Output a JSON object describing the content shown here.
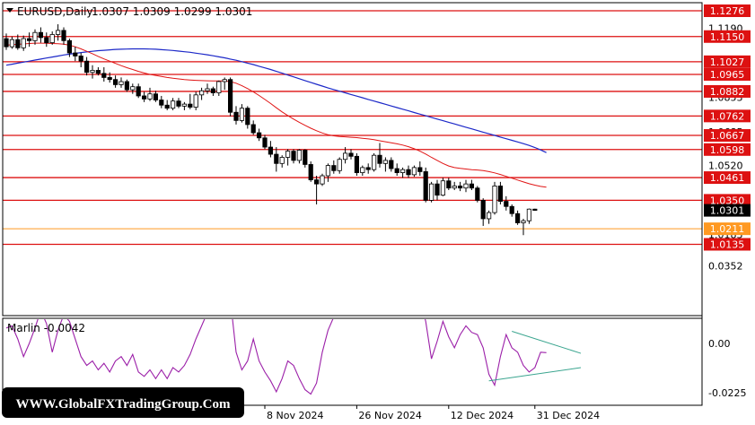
{
  "header": {
    "symbol_label": "EURUSD,Daily",
    "ohlc": "1.0307 1.0309 1.0299 1.0301"
  },
  "indicator": {
    "label": "Marlin -0.0042",
    "axis_labels": [
      "0.0352",
      "0.00",
      "-0.0225"
    ]
  },
  "watermark": "WWW.GlobalFXTradingGroup.Com",
  "colors": {
    "level_line": "#dd1111",
    "level_label_bg": "#dd1111",
    "current_price_bg": "#000000",
    "orange_level": "#ff9922",
    "ma_fast": "#e01515",
    "ma_slow": "#1c28c8",
    "oscillator": "#9b1fa8",
    "triangle": "#3aa58f"
  },
  "chart_data": [
    {
      "type": "candlestick",
      "price_axis_labels": [
        "1.1190",
        "1.0853",
        "1.0685",
        "1.0520",
        "1.0183"
      ],
      "x_tick_labels": [
        "8 Nov 2024",
        "26 Nov 2024",
        "12 Dec 2024",
        "31 Dec 2024"
      ],
      "current_price": 1.0301,
      "horizontal_levels": [
        {
          "price": 1.1276,
          "label": "1.1276"
        },
        {
          "price": 1.115,
          "label": "1.1150"
        },
        {
          "price": 1.1027,
          "label": "1.1027"
        },
        {
          "price": 1.0965,
          "label": "1.0965"
        },
        {
          "price": 1.0882,
          "label": "1.0882"
        },
        {
          "price": 1.0762,
          "label": "1.0762"
        },
        {
          "price": 1.0667,
          "label": "1.0667"
        },
        {
          "price": 1.0598,
          "label": "1.0598"
        },
        {
          "price": 1.0461,
          "label": "1.0461"
        },
        {
          "price": 1.035,
          "label": "1.0350"
        },
        {
          "price": 1.0135,
          "label": "1.0135"
        }
      ],
      "orange_level": {
        "price": 1.0211,
        "label": "1.0211"
      },
      "candles": [
        [
          1.114,
          1.1165,
          1.1085,
          1.11
        ],
        [
          1.11,
          1.115,
          1.109,
          1.1135
        ],
        [
          1.1135,
          1.116,
          1.1085,
          1.1095
        ],
        [
          1.1095,
          1.1155,
          1.108,
          1.114
        ],
        [
          1.114,
          1.117,
          1.11,
          1.113
        ],
        [
          1.113,
          1.1185,
          1.111,
          1.117
        ],
        [
          1.117,
          1.1195,
          1.112,
          1.1145
        ],
        [
          1.1145,
          1.117,
          1.11,
          1.112
        ],
        [
          1.112,
          1.1175,
          1.111,
          1.116
        ],
        [
          1.116,
          1.121,
          1.113,
          1.118
        ],
        [
          1.118,
          1.1195,
          1.111,
          1.113
        ],
        [
          1.113,
          1.114,
          1.105,
          1.107
        ],
        [
          1.107,
          1.11,
          1.103,
          1.1055
        ],
        [
          1.1055,
          1.107,
          1.1,
          1.103
        ],
        [
          1.103,
          1.105,
          1.096,
          1.0975
        ],
        [
          1.0975,
          1.101,
          1.0945,
          1.0985
        ],
        [
          1.0985,
          1.1,
          1.096,
          1.097
        ],
        [
          1.097,
          1.1,
          1.093,
          1.095
        ],
        [
          1.095,
          1.0975,
          1.0925,
          1.094
        ],
        [
          1.094,
          1.096,
          1.09,
          1.0915
        ],
        [
          1.0915,
          1.095,
          1.09,
          1.093
        ],
        [
          1.093,
          1.094,
          1.088,
          1.089
        ],
        [
          1.089,
          1.092,
          1.087,
          1.0905
        ],
        [
          1.0905,
          1.092,
          1.085,
          1.086
        ],
        [
          1.086,
          1.088,
          1.083,
          1.0845
        ],
        [
          1.0845,
          1.09,
          1.0835,
          1.087
        ],
        [
          1.087,
          1.0885,
          1.083,
          1.084
        ],
        [
          1.084,
          1.086,
          1.08,
          1.0815
        ],
        [
          1.0815,
          1.084,
          1.079,
          1.08
        ],
        [
          1.08,
          1.085,
          1.079,
          1.0835
        ],
        [
          1.0835,
          1.085,
          1.08,
          1.081
        ],
        [
          1.081,
          1.083,
          1.079,
          1.082
        ],
        [
          1.082,
          1.087,
          1.0795,
          1.0805
        ],
        [
          1.0805,
          1.088,
          1.079,
          1.0865
        ],
        [
          1.0865,
          1.09,
          1.084,
          1.0885
        ],
        [
          1.0885,
          1.092,
          1.087,
          1.0895
        ],
        [
          1.0895,
          1.0905,
          1.086,
          1.0875
        ],
        [
          1.0875,
          1.0935,
          1.086,
          1.093
        ],
        [
          1.093,
          1.095,
          1.089,
          1.094
        ],
        [
          1.094,
          1.095,
          1.076,
          1.078
        ],
        [
          1.078,
          1.081,
          1.072,
          1.074
        ],
        [
          1.074,
          1.082,
          1.073,
          1.08
        ],
        [
          1.08,
          1.081,
          1.07,
          1.072
        ],
        [
          1.072,
          1.074,
          1.067,
          1.068
        ],
        [
          1.068,
          1.07,
          1.064,
          1.0655
        ],
        [
          1.0655,
          1.067,
          1.06,
          1.061
        ],
        [
          1.061,
          1.064,
          1.056,
          1.0575
        ],
        [
          1.0575,
          1.061,
          1.049,
          1.053
        ],
        [
          1.053,
          1.057,
          1.051,
          1.056
        ],
        [
          1.056,
          1.06,
          1.052,
          1.059
        ],
        [
          1.059,
          1.06,
          1.053,
          1.0545
        ],
        [
          1.0545,
          1.06,
          1.053,
          1.0595
        ],
        [
          1.0595,
          1.06,
          1.051,
          1.0525
        ],
        [
          1.0525,
          1.054,
          1.044,
          1.045
        ],
        [
          1.045,
          1.047,
          1.033,
          1.043
        ],
        [
          1.043,
          1.048,
          1.042,
          1.047
        ],
        [
          1.047,
          1.053,
          1.044,
          1.052
        ],
        [
          1.052,
          1.0545,
          1.048,
          1.0495
        ],
        [
          1.0495,
          1.056,
          1.048,
          1.055
        ],
        [
          1.055,
          1.061,
          1.053,
          1.058
        ],
        [
          1.058,
          1.06,
          1.055,
          1.0565
        ],
        [
          1.0565,
          1.058,
          1.047,
          1.0485
        ],
        [
          1.0485,
          1.052,
          1.047,
          1.051
        ],
        [
          1.051,
          1.053,
          1.048,
          1.05
        ],
        [
          1.05,
          1.058,
          1.049,
          1.057
        ],
        [
          1.057,
          1.063,
          1.051,
          1.053
        ],
        [
          1.053,
          1.056,
          1.049,
          1.0545
        ],
        [
          1.0545,
          1.056,
          1.049,
          1.0505
        ],
        [
          1.0505,
          1.053,
          1.047,
          1.0485
        ],
        [
          1.0485,
          1.051,
          1.046,
          1.05
        ],
        [
          1.05,
          1.052,
          1.046,
          1.0475
        ],
        [
          1.0475,
          1.052,
          1.0465,
          1.051
        ],
        [
          1.051,
          1.054,
          1.047,
          1.049
        ],
        [
          1.049,
          1.051,
          1.034,
          1.035
        ],
        [
          1.035,
          1.044,
          1.034,
          1.043
        ],
        [
          1.043,
          1.045,
          1.035,
          1.0375
        ],
        [
          1.0375,
          1.046,
          1.037,
          1.0445
        ],
        [
          1.0445,
          1.046,
          1.04,
          1.041
        ],
        [
          1.041,
          1.044,
          1.04,
          1.042
        ],
        [
          1.042,
          1.044,
          1.0395,
          1.041
        ],
        [
          1.041,
          1.045,
          1.039,
          1.043
        ],
        [
          1.043,
          1.045,
          1.04,
          1.041
        ],
        [
          1.041,
          1.042,
          1.034,
          1.035
        ],
        [
          1.035,
          1.036,
          1.0225,
          1.026
        ],
        [
          1.026,
          1.03,
          1.0235,
          1.029
        ],
        [
          1.029,
          1.044,
          1.028,
          1.042
        ],
        [
          1.042,
          1.044,
          1.033,
          1.0345
        ],
        [
          1.0345,
          1.037,
          1.03,
          1.032
        ],
        [
          1.032,
          1.033,
          1.027,
          1.0285
        ],
        [
          1.0285,
          1.03,
          1.023,
          1.024
        ],
        [
          1.024,
          1.026,
          1.018,
          1.025
        ],
        [
          1.025,
          1.031,
          1.0235,
          1.0307
        ],
        [
          1.0307,
          1.0309,
          1.0299,
          1.0301
        ]
      ],
      "ma_fast_values": [
        1.1108,
        1.111,
        1.1112,
        1.1114,
        1.1116,
        1.1118,
        1.1118,
        1.1117,
        1.1116,
        1.1115,
        1.1113,
        1.1108,
        1.11,
        1.109,
        1.1078,
        1.1066,
        1.1053,
        1.1041,
        1.103,
        1.1019,
        1.1008,
        1.0998,
        1.0989,
        1.098,
        1.0972,
        1.0965,
        1.096,
        1.0955,
        1.095,
        1.0946,
        1.0943,
        1.094,
        1.0938,
        1.0936,
        1.0935,
        1.0934,
        1.0933,
        1.0933,
        1.0933,
        1.093,
        1.0922,
        1.091,
        1.0896,
        1.088,
        1.0862,
        1.0843,
        1.0823,
        1.0802,
        1.0782,
        1.0764,
        1.0747,
        1.0731,
        1.0716,
        1.0702,
        1.069,
        1.0679,
        1.067,
        1.0665,
        1.0662,
        1.066,
        1.0658,
        1.0656,
        1.0653,
        1.065,
        1.0646,
        1.0641,
        1.0636,
        1.0631,
        1.0626,
        1.062,
        1.0612,
        1.0602,
        1.059,
        1.0576,
        1.056,
        1.0545,
        1.053,
        1.0518,
        1.051,
        1.0506,
        1.0503,
        1.05,
        1.0498,
        1.0495,
        1.049,
        1.0484,
        1.0476,
        1.0467,
        1.0458,
        1.0449,
        1.044,
        1.0431,
        1.0424,
        1.0418,
        1.0414
      ],
      "ma_slow_values": [
        1.101,
        1.1015,
        1.102,
        1.1025,
        1.103,
        1.1035,
        1.104,
        1.1045,
        1.105,
        1.1055,
        1.106,
        1.1064,
        1.1068,
        1.1072,
        1.1075,
        1.1078,
        1.1081,
        1.1083,
        1.1085,
        1.1087,
        1.1088,
        1.1089,
        1.109,
        1.109,
        1.109,
        1.1089,
        1.1088,
        1.1086,
        1.1084,
        1.1082,
        1.1079,
        1.1076,
        1.1073,
        1.1069,
        1.1065,
        1.1061,
        1.1056,
        1.1051,
        1.1046,
        1.104,
        1.1034,
        1.1027,
        1.102,
        1.1013,
        1.1005,
        1.0997,
        1.0989,
        1.098,
        1.0971,
        1.0962,
        1.0953,
        1.0944,
        1.0935,
        1.0926,
        1.0917,
        1.0908,
        1.0899,
        1.0891,
        1.0883,
        1.0875,
        1.0867,
        1.0859,
        1.0851,
        1.0843,
        1.0835,
        1.0827,
        1.0819,
        1.0811,
        1.0803,
        1.0795,
        1.0787,
        1.0779,
        1.0771,
        1.0763,
        1.0755,
        1.0747,
        1.0739,
        1.0731,
        1.0723,
        1.0715,
        1.0707,
        1.0699,
        1.0691,
        1.0683,
        1.0675,
        1.0667,
        1.0659,
        1.0651,
        1.0643,
        1.0635,
        1.0627,
        1.0618,
        1.0608,
        1.0596,
        1.0583
      ]
    },
    {
      "type": "line",
      "name_label": "Marlin",
      "y_axis_labels": [
        "0.0352",
        "0.00",
        "-0.0225"
      ],
      "values": [
        0.007,
        0.008,
        0.002,
        -0.006,
        0.0,
        0.007,
        0.015,
        0.009,
        -0.004,
        0.006,
        0.013,
        0.01,
        0.002,
        -0.006,
        -0.01,
        -0.008,
        -0.012,
        -0.009,
        -0.013,
        -0.008,
        -0.006,
        -0.01,
        -0.005,
        -0.013,
        -0.015,
        -0.012,
        -0.016,
        -0.012,
        -0.016,
        -0.011,
        -0.013,
        -0.01,
        -0.005,
        0.002,
        0.008,
        0.014,
        0.021,
        0.028,
        0.035,
        0.02,
        -0.004,
        -0.012,
        -0.008,
        0.002,
        -0.008,
        -0.013,
        -0.017,
        -0.022,
        -0.016,
        -0.008,
        -0.01,
        -0.016,
        -0.021,
        -0.023,
        -0.018,
        -0.004,
        0.006,
        0.012,
        0.016,
        0.02,
        0.025,
        0.03,
        0.021,
        0.024,
        0.03,
        0.027,
        0.024,
        0.02,
        0.016,
        0.012,
        0.014,
        0.018,
        0.02,
        0.01,
        -0.007,
        0.001,
        0.01,
        0.003,
        -0.002,
        0.004,
        0.008,
        0.005,
        0.004,
        -0.002,
        -0.014,
        -0.019,
        -0.006,
        0.004,
        -0.002,
        -0.004,
        -0.01,
        -0.013,
        -0.011,
        -0.004,
        -0.0042
      ],
      "triangle_lines": [
        {
          "from_index": 88,
          "from_value": 0.0055,
          "to_index": 100,
          "to_value": -0.0045
        },
        {
          "from_index": 84,
          "from_value": -0.017,
          "to_index": 100,
          "to_value": -0.011
        }
      ]
    }
  ]
}
